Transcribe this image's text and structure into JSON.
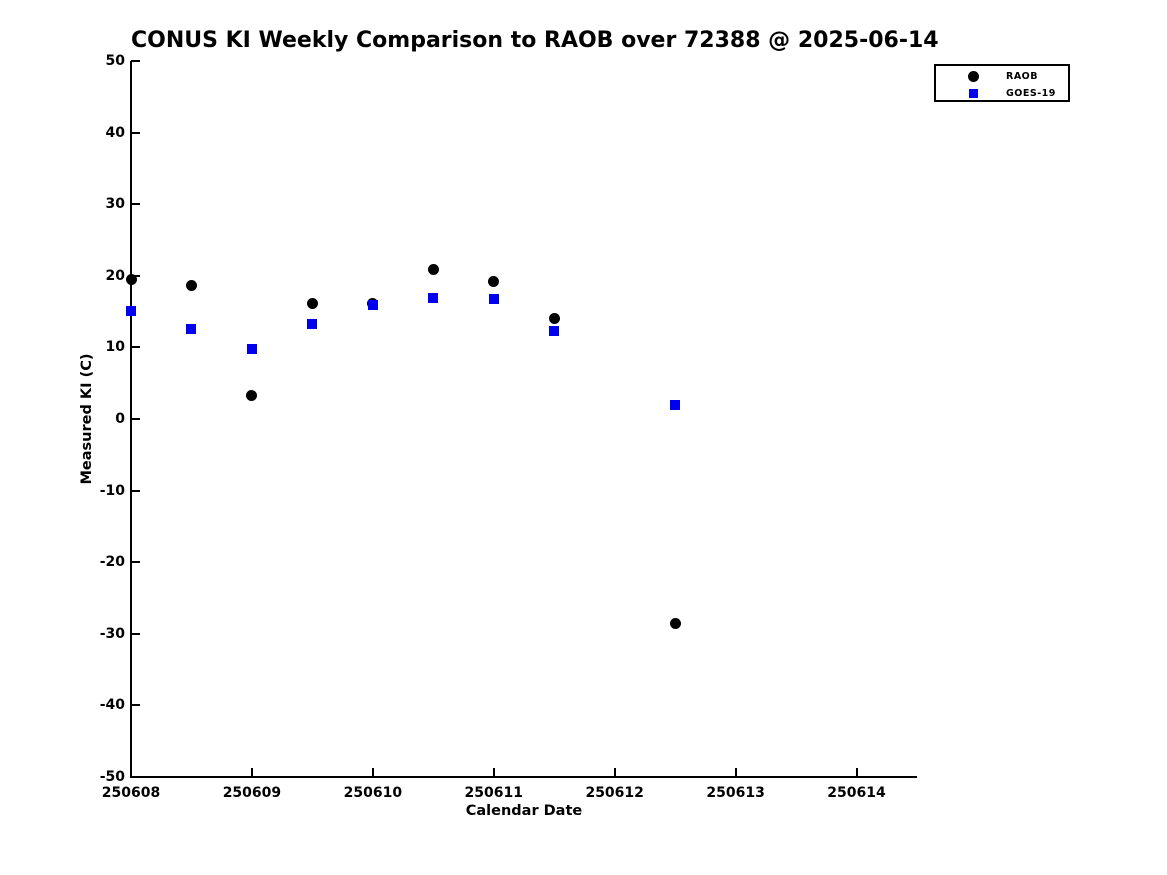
{
  "title": "CONUS KI Weekly Comparison to RAOB over 72388 @ 2025-06-14",
  "chart_data": {
    "type": "scatter",
    "title": "CONUS KI Weekly Comparison to RAOB over 72388 @ 2025-06-14",
    "xlabel": "Calendar Date",
    "ylabel": "Measured KI (C)",
    "xlim": [
      250608,
      250614.5
    ],
    "ylim": [
      -50,
      50
    ],
    "x_ticks": [
      250608,
      250609,
      250610,
      250611,
      250612,
      250613,
      250614
    ],
    "y_ticks": [
      50,
      40,
      30,
      20,
      10,
      0,
      -10,
      -20,
      -30,
      -40,
      -50
    ],
    "grid": false,
    "legend_position": "upper-right-outside-plot",
    "colors": {
      "raob": "#000000",
      "goes19": "#0000ee"
    },
    "series": [
      {
        "name": "RAOB",
        "marker": "circle",
        "color": "#000000",
        "x": [
          250608.0,
          250608.5,
          250609.0,
          250609.5,
          250610.0,
          250610.5,
          250611.0,
          250611.5,
          250612.5
        ],
        "y": [
          19.5,
          18.7,
          3.3,
          16.2,
          16.1,
          20.9,
          19.2,
          14.1,
          -28.5
        ]
      },
      {
        "name": "GOES-19",
        "marker": "square",
        "color": "#0000ee",
        "x": [
          250608.0,
          250608.5,
          250609.0,
          250609.5,
          250610.0,
          250610.5,
          250611.0,
          250611.5,
          250612.5
        ],
        "y": [
          15.1,
          12.6,
          9.8,
          13.3,
          15.9,
          16.9,
          16.8,
          12.3,
          1.9
        ]
      }
    ]
  }
}
